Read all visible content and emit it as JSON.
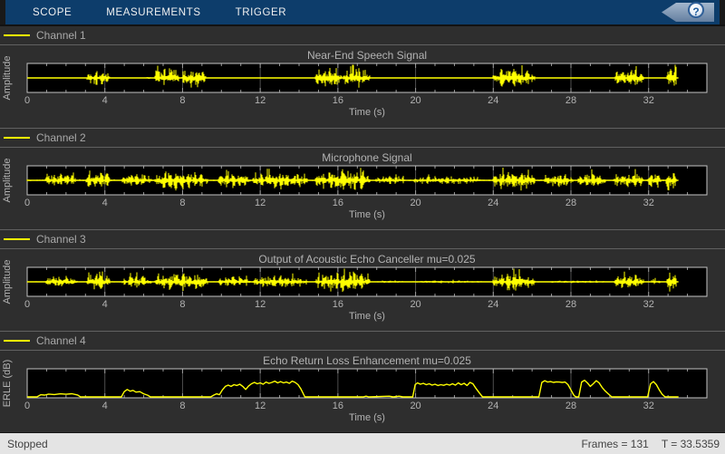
{
  "toolstrip": {
    "tabs": [
      {
        "label": "SCOPE"
      },
      {
        "label": "MEASUREMENTS"
      },
      {
        "label": "TRIGGER"
      }
    ],
    "help_label": "?"
  },
  "channels": [
    {
      "legend": "Channel 1"
    },
    {
      "legend": "Channel 2"
    },
    {
      "legend": "Channel 3"
    },
    {
      "legend": "Channel 4"
    }
  ],
  "status_bar": {
    "state": "Stopped",
    "frames": "Frames = 131",
    "time": "T = 33.5359"
  },
  "colors": {
    "toolstrip": "#0d3d6b",
    "window_bg": "#2e2e2e",
    "plot_bg": "#000000",
    "signal": "#ffff00",
    "plot_text": "#b3b3b3",
    "grid": "#4f4f4f",
    "tick": "#9a9a9a",
    "box_border": "#c4c4c4",
    "separator": "#616161",
    "legend_text": "#a9a9a9",
    "status_bg": "#e4e4e4",
    "status_text": "#424242"
  },
  "chart_data": [
    {
      "type": "line",
      "subtype": "waveform",
      "title": "Near-End Speech Signal",
      "xlabel": "Time (s)",
      "ylabel": "Amplitude",
      "xlim": [
        0,
        35
      ],
      "ylim": [
        -1,
        1
      ],
      "xticks": [
        0,
        4,
        8,
        12,
        16,
        20,
        24,
        28,
        32
      ],
      "t_end": 33.5359,
      "noise_floor": 0.02,
      "burst_format": "start_s, end_s, peak_amplitude",
      "bursts": [
        [
          3.05,
          4.25,
          0.62
        ],
        [
          6.15,
          6.35,
          0.15
        ],
        [
          6.55,
          7.85,
          0.85
        ],
        [
          7.95,
          9.2,
          0.75
        ],
        [
          14.8,
          16.2,
          0.95
        ],
        [
          16.25,
          17.65,
          0.8
        ],
        [
          23.95,
          26.15,
          0.85
        ],
        [
          30.2,
          31.75,
          0.7
        ],
        [
          32.9,
          33.45,
          0.95
        ]
      ]
    },
    {
      "type": "line",
      "subtype": "waveform",
      "title": "Microphone Signal",
      "xlabel": "Time (s)",
      "ylabel": "Amplitude",
      "xlim": [
        0,
        35
      ],
      "ylim": [
        -1,
        1
      ],
      "xticks": [
        0,
        4,
        8,
        12,
        16,
        20,
        24,
        28,
        32
      ],
      "t_end": 33.5359,
      "noise_floor": 0.07,
      "burst_format": "start_s, end_s, peak_amplitude",
      "bursts": [
        [
          0.9,
          2.6,
          0.55
        ],
        [
          3.0,
          4.3,
          0.7
        ],
        [
          4.85,
          6.4,
          0.6
        ],
        [
          6.55,
          9.3,
          0.8
        ],
        [
          9.8,
          11.5,
          0.6
        ],
        [
          11.6,
          14.45,
          0.7
        ],
        [
          14.8,
          17.65,
          0.9
        ],
        [
          17.9,
          19.5,
          0.35
        ],
        [
          19.85,
          23.35,
          0.35
        ],
        [
          23.95,
          26.15,
          0.85
        ],
        [
          26.6,
          28.1,
          0.55
        ],
        [
          28.3,
          29.8,
          0.6
        ],
        [
          30.15,
          31.8,
          0.65
        ],
        [
          31.95,
          32.65,
          0.7
        ],
        [
          32.85,
          33.45,
          0.85
        ]
      ]
    },
    {
      "type": "line",
      "subtype": "waveform",
      "title": "Output of Acoustic Echo Canceller mu=0.025",
      "xlabel": "Time (s)",
      "ylabel": "Amplitude",
      "xlim": [
        0,
        35
      ],
      "ylim": [
        -1,
        1
      ],
      "xticks": [
        0,
        4,
        8,
        12,
        16,
        20,
        24,
        28,
        32
      ],
      "t_end": 33.5359,
      "noise_floor": 0.05,
      "burst_format": "start_s, end_s, peak_amplitude",
      "bursts": [
        [
          0.9,
          2.6,
          0.5
        ],
        [
          3.0,
          4.3,
          0.65
        ],
        [
          4.85,
          6.4,
          0.5
        ],
        [
          6.55,
          9.3,
          0.75
        ],
        [
          9.8,
          11.5,
          0.45
        ],
        [
          11.6,
          14.45,
          0.5
        ],
        [
          14.8,
          17.65,
          0.85
        ],
        [
          17.9,
          19.5,
          0.1
        ],
        [
          19.85,
          23.35,
          0.12
        ],
        [
          23.95,
          26.15,
          0.8
        ],
        [
          26.6,
          29.8,
          0.1
        ],
        [
          30.2,
          31.75,
          0.65
        ],
        [
          32.1,
          32.6,
          0.25
        ],
        [
          32.9,
          33.45,
          0.9
        ]
      ]
    },
    {
      "type": "line",
      "subtype": "envelope",
      "title": "Echo Return Loss Enhancement mu=0.025",
      "xlabel": "Time (s)",
      "ylabel": "ERLE (dB)",
      "xlim": [
        0,
        35
      ],
      "ylim": [
        0,
        30
      ],
      "xticks": [
        0,
        4,
        8,
        12,
        16,
        20,
        24,
        28,
        32
      ],
      "t_end": 33.5359,
      "point_format": "time_s, erle_dB",
      "points": [
        [
          0,
          0
        ],
        [
          0.5,
          0
        ],
        [
          0.7,
          2.5
        ],
        [
          0.9,
          2.1
        ],
        [
          1.1,
          3.2
        ],
        [
          1.4,
          2.7
        ],
        [
          1.7,
          3.5
        ],
        [
          2.0,
          3.0
        ],
        [
          2.3,
          3.6
        ],
        [
          2.6,
          2.2
        ],
        [
          2.75,
          0
        ],
        [
          4.85,
          0
        ],
        [
          5.0,
          6.0
        ],
        [
          5.15,
          8.5
        ],
        [
          5.3,
          6.5
        ],
        [
          5.45,
          7.5
        ],
        [
          5.6,
          5.5
        ],
        [
          5.8,
          6.0
        ],
        [
          6.0,
          3.5
        ],
        [
          6.2,
          2.0
        ],
        [
          6.35,
          0
        ],
        [
          9.45,
          0
        ],
        [
          9.6,
          2.0
        ],
        [
          9.75,
          3.5
        ],
        [
          9.9,
          2.5
        ],
        [
          10.05,
          8.0
        ],
        [
          10.2,
          12.0
        ],
        [
          10.35,
          13.5
        ],
        [
          10.5,
          12.0
        ],
        [
          10.65,
          14.0
        ],
        [
          10.8,
          13.0
        ],
        [
          10.95,
          14.5
        ],
        [
          11.1,
          12.0
        ],
        [
          11.25,
          8.5
        ],
        [
          11.4,
          12.5
        ],
        [
          11.55,
          15.0
        ],
        [
          11.7,
          16.5
        ],
        [
          11.85,
          15.0
        ],
        [
          12.0,
          16.0
        ],
        [
          12.15,
          14.5
        ],
        [
          12.3,
          17.0
        ],
        [
          12.45,
          15.5
        ],
        [
          12.6,
          16.5
        ],
        [
          12.75,
          18.0
        ],
        [
          12.9,
          16.0
        ],
        [
          13.05,
          17.5
        ],
        [
          13.2,
          16.0
        ],
        [
          13.35,
          17.0
        ],
        [
          13.5,
          15.5
        ],
        [
          13.65,
          18.0
        ],
        [
          13.8,
          16.5
        ],
        [
          13.95,
          14.0
        ],
        [
          14.1,
          9.0
        ],
        [
          14.3,
          0
        ],
        [
          17.3,
          0
        ],
        [
          17.45,
          0.8
        ],
        [
          17.6,
          0
        ],
        [
          18.65,
          0.8
        ],
        [
          18.85,
          0
        ],
        [
          19.15,
          0.8
        ],
        [
          19.35,
          0
        ],
        [
          19.85,
          0
        ],
        [
          19.98,
          14.0
        ],
        [
          20.1,
          16.0
        ],
        [
          20.25,
          14.5
        ],
        [
          20.4,
          15.5
        ],
        [
          20.55,
          14.0
        ],
        [
          20.7,
          15.0
        ],
        [
          20.85,
          13.5
        ],
        [
          21.0,
          14.5
        ],
        [
          21.15,
          13.0
        ],
        [
          21.3,
          14.0
        ],
        [
          21.45,
          13.2
        ],
        [
          21.6,
          14.5
        ],
        [
          21.75,
          13.5
        ],
        [
          21.9,
          15.0
        ],
        [
          22.05,
          13.5
        ],
        [
          22.2,
          16.0
        ],
        [
          22.35,
          14.0
        ],
        [
          22.5,
          15.5
        ],
        [
          22.65,
          13.0
        ],
        [
          22.8,
          16.5
        ],
        [
          22.95,
          15.0
        ],
        [
          23.1,
          10.0
        ],
        [
          23.3,
          4.0
        ],
        [
          23.45,
          0
        ],
        [
          26.35,
          0
        ],
        [
          26.5,
          16.5
        ],
        [
          26.65,
          18.5
        ],
        [
          26.8,
          17.0
        ],
        [
          26.95,
          17.5
        ],
        [
          27.1,
          16.5
        ],
        [
          27.25,
          17.2
        ],
        [
          27.4,
          17.0
        ],
        [
          27.55,
          16.5
        ],
        [
          27.7,
          17.0
        ],
        [
          27.85,
          14.0
        ],
        [
          28.0,
          8.0
        ],
        [
          28.15,
          2.0
        ],
        [
          28.25,
          0
        ],
        [
          28.4,
          0
        ],
        [
          28.55,
          17.0
        ],
        [
          28.7,
          19.0
        ],
        [
          28.85,
          16.0
        ],
        [
          29.0,
          12.0
        ],
        [
          29.15,
          15.0
        ],
        [
          29.3,
          18.5
        ],
        [
          29.45,
          16.0
        ],
        [
          29.6,
          11.0
        ],
        [
          29.75,
          7.0
        ],
        [
          29.9,
          4.0
        ],
        [
          30.1,
          0
        ],
        [
          31.95,
          0
        ],
        [
          32.1,
          15.0
        ],
        [
          32.25,
          17.5
        ],
        [
          32.4,
          14.0
        ],
        [
          32.55,
          8.0
        ],
        [
          32.7,
          3.0
        ],
        [
          32.85,
          0
        ],
        [
          33.54,
          0
        ]
      ]
    }
  ]
}
